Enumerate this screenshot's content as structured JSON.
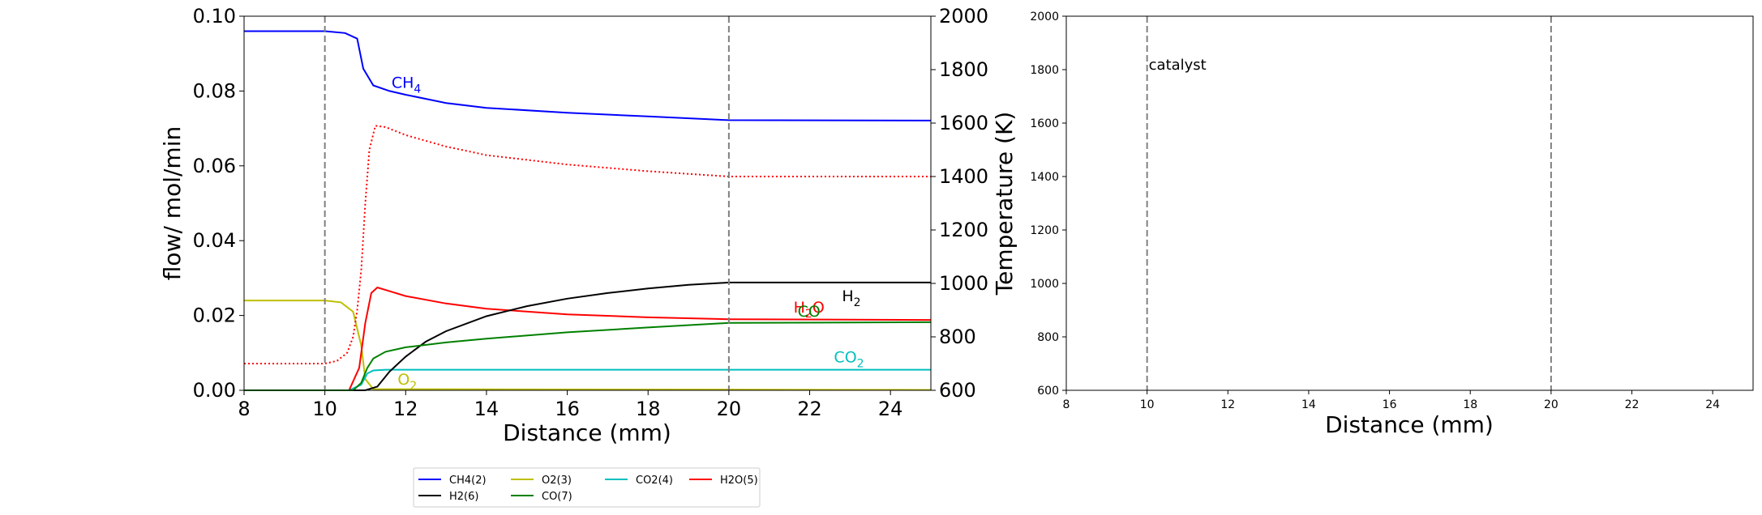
{
  "chart_data": [
    {
      "type": "line",
      "xlabel": "Distance (mm)",
      "ylabel": "flow/ mol/min",
      "ylabel_right": "Temperature (K)",
      "xlim": [
        8,
        25
      ],
      "ylim": [
        0,
        0.1
      ],
      "ylim_right": [
        600,
        2000
      ],
      "x_ticks": [
        "8",
        "10",
        "12",
        "14",
        "16",
        "18",
        "20",
        "22",
        "24"
      ],
      "y_ticks": [
        "0.00",
        "0.02",
        "0.04",
        "0.06",
        "0.08",
        "0.10"
      ],
      "y_right_ticks": [
        "600",
        "800",
        "1000",
        "1200",
        "1400",
        "1600",
        "1800",
        "2000"
      ],
      "vlines": [
        10,
        20
      ],
      "grid": false,
      "legend_position": "bottom-center",
      "legend_ncol": 4,
      "series": [
        {
          "name": "CH4(2)",
          "color": "#0000ff",
          "axis": "left",
          "x": [
            8,
            10,
            10.5,
            10.8,
            10.95,
            11.2,
            11.6,
            12,
            13,
            14,
            16,
            18,
            20,
            25
          ],
          "y": [
            0.096,
            0.096,
            0.0955,
            0.094,
            0.086,
            0.0815,
            0.08,
            0.079,
            0.0768,
            0.0755,
            0.0742,
            0.0732,
            0.0722,
            0.0721
          ]
        },
        {
          "name": "O2(3)",
          "color": "#bfbf00",
          "axis": "left",
          "x": [
            8,
            10,
            10.4,
            10.7,
            10.9,
            11.0,
            11.2,
            25
          ],
          "y": [
            0.024,
            0.024,
            0.0235,
            0.021,
            0.012,
            0.003,
            0.0003,
            0.0001
          ]
        },
        {
          "name": "CO2(4)",
          "color": "#00bfbf",
          "axis": "left",
          "x": [
            8,
            10.6,
            10.9,
            11.05,
            11.2,
            11.5,
            12,
            25
          ],
          "y": [
            0,
            0,
            0.0015,
            0.0045,
            0.0053,
            0.0055,
            0.0055,
            0.0055
          ]
        },
        {
          "name": "H2O(5)",
          "color": "#ff0000",
          "axis": "left",
          "x": [
            8,
            10.6,
            10.85,
            11.0,
            11.15,
            11.3,
            11.6,
            12,
            13,
            14,
            16,
            18,
            20,
            25
          ],
          "y": [
            0,
            0,
            0.006,
            0.018,
            0.026,
            0.0275,
            0.0265,
            0.0252,
            0.0232,
            0.0218,
            0.0203,
            0.0195,
            0.019,
            0.0188
          ]
        },
        {
          "name": "H2(6)",
          "color": "#000000",
          "axis": "left",
          "x": [
            8,
            11,
            11.3,
            11.6,
            12,
            12.5,
            13,
            14,
            15,
            16,
            17,
            18,
            19,
            20,
            25
          ],
          "y": [
            0,
            0,
            0.001,
            0.005,
            0.009,
            0.013,
            0.0158,
            0.0198,
            0.0225,
            0.0245,
            0.026,
            0.0272,
            0.0282,
            0.0288,
            0.0288
          ]
        },
        {
          "name": "CO(7)",
          "color": "#008000",
          "axis": "left",
          "x": [
            8,
            10.7,
            10.9,
            11.05,
            11.2,
            11.5,
            12,
            13,
            14,
            16,
            18,
            20,
            25
          ],
          "y": [
            0,
            0,
            0.002,
            0.006,
            0.0085,
            0.0103,
            0.0115,
            0.0128,
            0.0138,
            0.0155,
            0.0168,
            0.018,
            0.0182
          ]
        },
        {
          "name": "Temperature",
          "color": "#ff0000",
          "dashed": true,
          "axis": "right",
          "x": [
            8,
            10,
            10.3,
            10.55,
            10.7,
            10.8,
            10.9,
            11.0,
            11.1,
            11.25,
            11.5,
            12,
            13,
            14,
            16,
            18,
            20,
            25
          ],
          "y": [
            700,
            700,
            710,
            740,
            800,
            900,
            1050,
            1300,
            1500,
            1590,
            1585,
            1555,
            1512,
            1480,
            1445,
            1420,
            1400,
            1400
          ]
        }
      ],
      "annotations": [
        {
          "text": "CH",
          "sub": "4",
          "x": 11.65,
          "y": 0.0808,
          "color": "#0000ff"
        },
        {
          "text": "H",
          "sub": "2",
          "x": 22.8,
          "y": 0.0238,
          "color": "#000000"
        },
        {
          "text": "H",
          "sub": "2",
          "text2": "O",
          "x": 21.6,
          "y": 0.0208,
          "color": "#ff0000"
        },
        {
          "text": "CO",
          "x": 21.7,
          "y": 0.0197,
          "color": "#008000"
        },
        {
          "text": "CO",
          "sub": "2",
          "x": 22.6,
          "y": 0.0075,
          "color": "#00bfbf"
        },
        {
          "text": "O",
          "sub": "2",
          "x": 11.8,
          "y": 0.0015,
          "color": "#bfbf00"
        }
      ]
    },
    {
      "type": "line",
      "xlabel": "Distance (mm)",
      "xlim": [
        8,
        25
      ],
      "ylim": [
        600,
        2000
      ],
      "x_ticks": [
        "8",
        "10",
        "12",
        "14",
        "16",
        "18",
        "20",
        "22",
        "24"
      ],
      "y_ticks": [
        "600",
        "800",
        "1000",
        "1200",
        "1400",
        "1600",
        "1800",
        "2000"
      ],
      "vlines": [
        10,
        20
      ],
      "grid": false,
      "series": [],
      "annotations": [
        {
          "text": "catalyst",
          "x": 10,
          "y": 1800,
          "color": "#000000"
        }
      ]
    }
  ]
}
